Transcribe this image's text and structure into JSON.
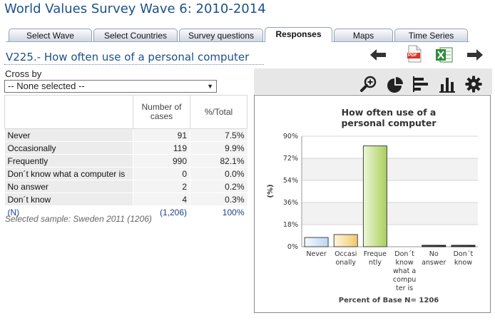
{
  "header": {
    "title": "World Values Survey Wave 6: 2010-2014"
  },
  "tabs": [
    {
      "label": "Select Wave",
      "active": false
    },
    {
      "label": "Select Countries",
      "active": false
    },
    {
      "label": "Survey questions",
      "active": false
    },
    {
      "label": "Responses",
      "active": true
    },
    {
      "label": "Maps",
      "active": false
    },
    {
      "label": "Time Series",
      "active": false
    }
  ],
  "question": {
    "title": "V225.- How often use of a personal computer"
  },
  "toolbar": {
    "pdf_label": "PDF"
  },
  "crossby": {
    "label": "Cross by",
    "selected": "-- None selected --"
  },
  "table": {
    "col_cases": "Number of cases",
    "col_total": "%/Total",
    "rows": [
      {
        "label": "Never",
        "cases": "91",
        "pct": "7.5%"
      },
      {
        "label": "Occasionally",
        "cases": "119",
        "pct": "9.9%"
      },
      {
        "label": "Frequently",
        "cases": "990",
        "pct": "82.1%"
      },
      {
        "label": "Don´t know what a computer is",
        "cases": "0",
        "pct": "0.0%"
      },
      {
        "label": "No answer",
        "cases": "2",
        "pct": "0.2%"
      },
      {
        "label": "Don´t know",
        "cases": "4",
        "pct": "0.3%"
      }
    ],
    "total": {
      "label": "(N)",
      "cases": "(1,206)",
      "pct": "100%"
    }
  },
  "sample_note": "Selected sample: Sweden 2011 (1206)",
  "colors": {
    "title_blue": "#1c4f8c",
    "green_icon": "#2e8b3a",
    "pdf_red": "#d9342b"
  },
  "chart_data": {
    "type": "bar",
    "title": "How often use of a personal computer",
    "ylabel": "(%)",
    "xlabel": "Percent of Base N= 1206",
    "ylim": [
      0,
      90
    ],
    "yticks": [
      "0%",
      "18%",
      "36%",
      "54%",
      "72%",
      "90%"
    ],
    "ytick_values": [
      0,
      18,
      36,
      54,
      72,
      90
    ],
    "categories": [
      [
        "Never"
      ],
      [
        "Occasi",
        "onally"
      ],
      [
        "Freque",
        "ntly"
      ],
      [
        "Don´t",
        "know",
        "what a",
        "compu",
        "ter is"
      ],
      [
        "No",
        "answer"
      ],
      [
        "Don´t",
        "know"
      ]
    ],
    "values": [
      7.5,
      9.9,
      82.1,
      0.0,
      0.2,
      0.3
    ],
    "colors": [
      [
        "#f4f9ff",
        "#bcd6ef"
      ],
      [
        "#fff6df",
        "#f0c86a"
      ],
      [
        "#eef7d8",
        "#a9cf5c"
      ],
      [
        "#555555",
        "#222222"
      ],
      [
        "#555555",
        "#222222"
      ],
      [
        "#555555",
        "#222222"
      ]
    ],
    "grid": true,
    "legend": "none"
  }
}
